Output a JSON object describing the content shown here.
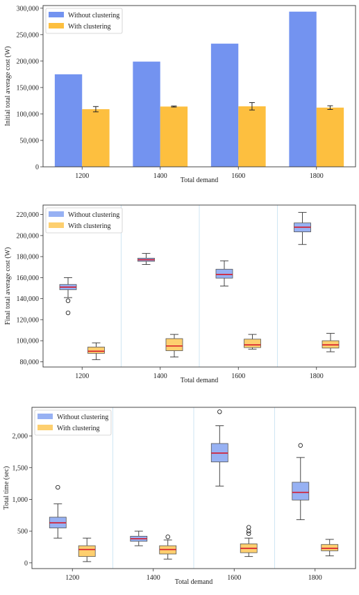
{
  "colors": {
    "without": "#7393f0",
    "with": "#fdbf3f",
    "without_box": "#97b1f3",
    "with_box": "#fdcf6f",
    "median": "#d6182a",
    "separator": "#cfe6f3"
  },
  "chart_data": [
    {
      "type": "bar",
      "categories": [
        "1200",
        "1400",
        "1600",
        "1800"
      ],
      "series": [
        {
          "name": "Without clustering",
          "values": [
            175000,
            199000,
            233000,
            293500
          ]
        },
        {
          "name": "With clustering",
          "values": [
            109000,
            114000,
            114500,
            112000
          ],
          "error": [
            5000,
            1000,
            7000,
            3500
          ]
        }
      ],
      "xlabel": "Total demand",
      "ylabel": "Initial total average cost (W)",
      "ylim": [
        0,
        305000
      ],
      "yticks": [
        0,
        50000,
        100000,
        150000,
        200000,
        250000,
        300000
      ],
      "ytick_labels": [
        "0",
        "50,000",
        "100,000",
        "150,000",
        "200,000",
        "250,000",
        "300,000"
      ],
      "legend": "top-left"
    },
    {
      "type": "box",
      "categories": [
        "1200",
        "1400",
        "1600",
        "1800"
      ],
      "series": [
        {
          "name": "Without clustering",
          "boxes": [
            {
              "lo": 141000,
              "q1": 148500,
              "med": 151000,
              "q3": 153500,
              "hi": 160000,
              "outliers": [
                138000,
                126500
              ]
            },
            {
              "lo": 172500,
              "q1": 175500,
              "med": 177000,
              "q3": 178500,
              "hi": 183000,
              "outliers": []
            },
            {
              "lo": 152000,
              "q1": 159500,
              "med": 163000,
              "q3": 168000,
              "hi": 176000,
              "outliers": []
            },
            {
              "lo": 191500,
              "q1": 203500,
              "med": 208000,
              "q3": 212000,
              "hi": 222000,
              "outliers": []
            }
          ]
        },
        {
          "name": "With clustering",
          "boxes": [
            {
              "lo": 82000,
              "q1": 88000,
              "med": 90000,
              "q3": 94000,
              "hi": 98000,
              "outliers": []
            },
            {
              "lo": 84500,
              "q1": 90500,
              "med": 95000,
              "q3": 102000,
              "hi": 106000,
              "outliers": []
            },
            {
              "lo": 92000,
              "q1": 93500,
              "med": 96000,
              "q3": 101500,
              "hi": 106000,
              "outliers": []
            },
            {
              "lo": 89500,
              "q1": 93000,
              "med": 96000,
              "q3": 100000,
              "hi": 107000,
              "outliers": []
            }
          ]
        }
      ],
      "xlabel": "Total demand",
      "ylabel": "Final total average cost (W)",
      "ylim": [
        75000,
        229000
      ],
      "yticks": [
        80000,
        100000,
        120000,
        140000,
        160000,
        180000,
        200000,
        220000
      ],
      "ytick_labels": [
        "80,000",
        "100,000",
        "120,000",
        "140,000",
        "160,000",
        "180,000",
        "200,000",
        "220,000"
      ],
      "legend": "top-left"
    },
    {
      "type": "box",
      "categories": [
        "1200",
        "1400",
        "1600",
        "1800"
      ],
      "series": [
        {
          "name": "Without clustering",
          "boxes": [
            {
              "lo": 390,
              "q1": 550,
              "med": 630,
              "q3": 720,
              "hi": 930,
              "outliers": [
                1190
              ]
            },
            {
              "lo": 270,
              "q1": 340,
              "med": 380,
              "q3": 420,
              "hi": 500,
              "outliers": []
            },
            {
              "lo": 1210,
              "q1": 1590,
              "med": 1730,
              "q3": 1880,
              "hi": 2160,
              "outliers": [
                2380
              ]
            },
            {
              "lo": 680,
              "q1": 990,
              "med": 1110,
              "q3": 1270,
              "hi": 1660,
              "outliers": [
                1850
              ]
            }
          ]
        },
        {
          "name": "With clustering",
          "boxes": [
            {
              "lo": 20,
              "q1": 100,
              "med": 210,
              "q3": 270,
              "hi": 390,
              "outliers": []
            },
            {
              "lo": 60,
              "q1": 140,
              "med": 210,
              "q3": 270,
              "hi": 360,
              "outliers": [
                410
              ]
            },
            {
              "lo": 100,
              "q1": 160,
              "med": 230,
              "q3": 300,
              "hi": 390,
              "outliers": [
                460,
                500,
                560
              ]
            },
            {
              "lo": 110,
              "q1": 190,
              "med": 230,
              "q3": 290,
              "hi": 370,
              "outliers": []
            }
          ]
        }
      ],
      "xlabel": "Total demand",
      "ylabel": "Total time (sec)",
      "ylim": [
        -90,
        2450
      ],
      "yticks": [
        0,
        500,
        1000,
        1500,
        2000
      ],
      "ytick_labels": [
        "0",
        "500",
        "1,000",
        "1,500",
        "2,000"
      ],
      "legend": "top-left"
    }
  ]
}
